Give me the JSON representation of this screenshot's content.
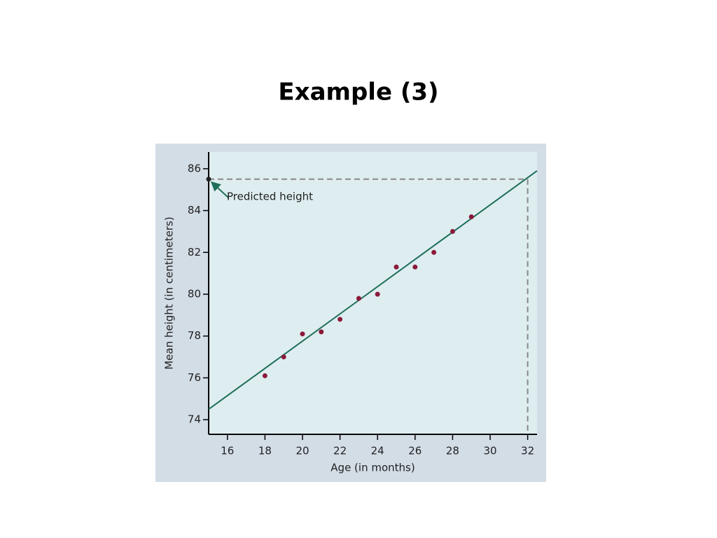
{
  "slide_title": "Example (3)",
  "chart_data": {
    "type": "scatter",
    "x_label": "Age (in months)",
    "y_label": "Mean height (in centimeters)",
    "xlim": [
      15,
      32.5
    ],
    "ylim": [
      73.3,
      86.8
    ],
    "xticks": [
      16,
      18,
      20,
      22,
      24,
      26,
      28,
      30,
      32
    ],
    "yticks": [
      74,
      76,
      78,
      80,
      82,
      84,
      86
    ],
    "x": [
      18,
      19,
      20,
      21,
      22,
      23,
      24,
      25,
      26,
      27,
      28,
      29
    ],
    "values": [
      76.1,
      77.0,
      78.1,
      78.2,
      78.8,
      79.8,
      80.0,
      81.3,
      81.3,
      82.0,
      83.0,
      83.7
    ],
    "color": "#8b1a3a",
    "fit_line": {
      "x": [
        15,
        32.5
      ],
      "values": [
        74.5,
        85.9
      ],
      "color": "#1e6e5a"
    },
    "annotation": {
      "text": "Predicted height",
      "x": 32,
      "y": 85.5
    }
  }
}
